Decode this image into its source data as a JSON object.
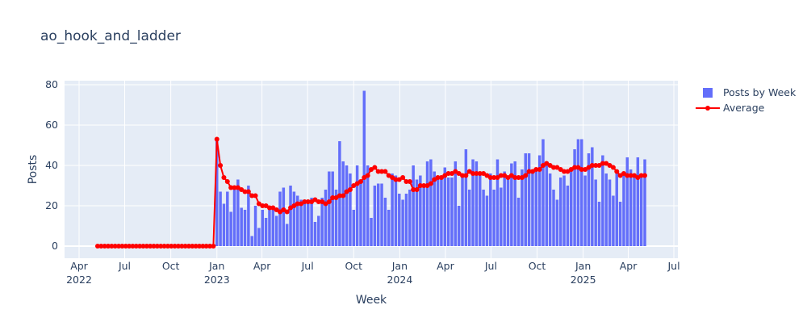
{
  "chart_data": {
    "type": "bar",
    "title": "ao_hook_and_ladder",
    "x_label": "Week",
    "y_label": "Posts",
    "x": [
      "2022-05-08",
      "2022-05-15",
      "2022-05-22",
      "2022-05-29",
      "2022-06-05",
      "2022-06-12",
      "2022-06-19",
      "2022-06-26",
      "2022-07-03",
      "2022-07-10",
      "2022-07-17",
      "2022-07-24",
      "2022-07-31",
      "2022-08-07",
      "2022-08-14",
      "2022-08-21",
      "2022-08-28",
      "2022-09-04",
      "2022-09-11",
      "2022-09-18",
      "2022-09-25",
      "2022-10-02",
      "2022-10-09",
      "2022-10-16",
      "2022-10-23",
      "2022-10-30",
      "2022-11-06",
      "2022-11-13",
      "2022-11-20",
      "2022-11-27",
      "2022-12-04",
      "2022-12-11",
      "2022-12-18",
      "2022-12-25",
      "2023-01-01",
      "2023-01-08",
      "2023-01-15",
      "2023-01-22",
      "2023-01-29",
      "2023-02-05",
      "2023-02-12",
      "2023-02-19",
      "2023-02-26",
      "2023-03-05",
      "2023-03-12",
      "2023-03-19",
      "2023-03-26",
      "2023-04-02",
      "2023-04-09",
      "2023-04-16",
      "2023-04-23",
      "2023-04-30",
      "2023-05-07",
      "2023-05-14",
      "2023-05-21",
      "2023-05-28",
      "2023-06-04",
      "2023-06-11",
      "2023-06-18",
      "2023-06-25",
      "2023-07-02",
      "2023-07-09",
      "2023-07-16",
      "2023-07-23",
      "2023-07-30",
      "2023-08-06",
      "2023-08-13",
      "2023-08-20",
      "2023-08-27",
      "2023-09-03",
      "2023-09-10",
      "2023-09-17",
      "2023-09-24",
      "2023-10-01",
      "2023-10-08",
      "2023-10-15",
      "2023-10-22",
      "2023-10-29",
      "2023-11-05",
      "2023-11-12",
      "2023-11-19",
      "2023-11-26",
      "2023-12-03",
      "2023-12-10",
      "2023-12-17",
      "2023-12-24",
      "2023-12-31",
      "2024-01-07",
      "2024-01-14",
      "2024-01-21",
      "2024-01-28",
      "2024-02-04",
      "2024-02-11",
      "2024-02-18",
      "2024-02-25",
      "2024-03-03",
      "2024-03-10",
      "2024-03-17",
      "2024-03-24",
      "2024-03-31",
      "2024-04-07",
      "2024-04-14",
      "2024-04-21",
      "2024-04-28",
      "2024-05-05",
      "2024-05-12",
      "2024-05-19",
      "2024-05-26",
      "2024-06-02",
      "2024-06-09",
      "2024-06-16",
      "2024-06-23",
      "2024-06-30",
      "2024-07-07",
      "2024-07-14",
      "2024-07-21",
      "2024-07-28",
      "2024-08-04",
      "2024-08-11",
      "2024-08-18",
      "2024-08-25",
      "2024-09-01",
      "2024-09-08",
      "2024-09-15",
      "2024-09-22",
      "2024-09-29",
      "2024-10-06",
      "2024-10-13",
      "2024-10-20",
      "2024-10-27",
      "2024-11-03",
      "2024-11-10",
      "2024-11-17",
      "2024-11-24",
      "2024-12-01",
      "2024-12-08",
      "2024-12-15",
      "2024-12-22",
      "2024-12-29",
      "2025-01-05",
      "2025-01-12",
      "2025-01-19",
      "2025-01-26",
      "2025-02-02",
      "2025-02-09",
      "2025-02-16",
      "2025-02-23",
      "2025-03-02",
      "2025-03-09",
      "2025-03-16",
      "2025-03-23",
      "2025-03-30",
      "2025-04-06",
      "2025-04-13",
      "2025-04-20",
      "2025-04-27",
      "2025-05-04"
    ],
    "series": [
      {
        "name": "Posts by Week",
        "type": "bar",
        "color": "#636efa",
        "values": [
          0,
          0,
          0,
          0,
          0,
          0,
          0,
          0,
          0,
          0,
          0,
          0,
          0,
          0,
          0,
          0,
          0,
          0,
          0,
          0,
          0,
          0,
          0,
          0,
          0,
          0,
          0,
          0,
          0,
          0,
          0,
          0,
          0,
          0,
          53,
          27,
          21,
          27,
          17,
          29,
          33,
          19,
          18,
          30,
          5,
          20,
          9,
          18,
          14,
          20,
          19,
          15,
          27,
          29,
          11,
          30,
          27,
          25,
          23,
          22,
          23,
          24,
          12,
          15,
          24,
          28,
          37,
          37,
          28,
          52,
          42,
          40,
          36,
          18,
          40,
          31,
          77,
          40,
          14,
          30,
          31,
          31,
          24,
          18,
          36,
          35,
          26,
          23,
          26,
          28,
          40,
          33,
          35,
          30,
          42,
          43,
          37,
          33,
          35,
          39,
          34,
          34,
          42,
          20,
          36,
          48,
          28,
          43,
          42,
          36,
          28,
          25,
          36,
          28,
          43,
          29,
          37,
          33,
          41,
          42,
          24,
          38,
          46,
          46,
          38,
          38,
          45,
          53,
          40,
          36,
          28,
          23,
          34,
          35,
          30,
          37,
          48,
          53,
          53,
          35,
          46,
          49,
          33,
          22,
          45,
          36,
          33,
          25,
          38,
          22,
          36,
          44,
          38,
          34,
          44,
          36,
          43
        ]
      },
      {
        "name": "Average",
        "type": "line",
        "color": "#ff0000",
        "values": [
          0,
          0,
          0,
          0,
          0,
          0,
          0,
          0,
          0,
          0,
          0,
          0,
          0,
          0,
          0,
          0,
          0,
          0,
          0,
          0,
          0,
          0,
          0,
          0,
          0,
          0,
          0,
          0,
          0,
          0,
          0,
          0,
          0,
          0,
          53,
          40,
          34,
          32,
          29,
          29,
          29,
          28,
          27,
          27,
          25,
          25,
          21,
          20,
          20,
          19,
          19,
          18,
          17,
          18,
          17,
          19,
          20,
          21,
          21,
          22,
          22,
          22,
          23,
          22,
          22,
          21,
          22,
          24,
          24,
          25,
          25,
          27,
          28,
          30,
          31,
          32,
          34,
          35,
          38,
          39,
          37,
          37,
          37,
          35,
          34,
          33,
          33,
          34,
          32,
          32,
          28,
          28,
          30,
          30,
          30,
          31,
          33,
          34,
          34,
          35,
          36,
          36,
          37,
          36,
          35,
          35,
          37,
          36,
          36,
          36,
          36,
          35,
          34,
          34,
          34,
          35,
          35,
          34,
          35,
          34,
          34,
          34,
          35,
          37,
          37,
          38,
          38,
          40,
          41,
          40,
          39,
          39,
          38,
          37,
          37,
          38,
          39,
          39,
          38,
          38,
          39,
          40,
          40,
          40,
          41,
          41,
          40,
          39,
          37,
          35,
          36,
          35,
          35,
          35,
          34,
          35,
          35
        ]
      }
    ],
    "xlim": [
      "2022-03-03",
      "2025-07-09"
    ],
    "xticks": [
      {
        "value": "2022-04-01",
        "label": "Apr 2022"
      },
      {
        "value": "2022-07-01",
        "label": "Jul"
      },
      {
        "value": "2022-10-01",
        "label": "Oct"
      },
      {
        "value": "2023-01-01",
        "label": "Jan 2023"
      },
      {
        "value": "2023-04-01",
        "label": "Apr"
      },
      {
        "value": "2023-07-01",
        "label": "Jul"
      },
      {
        "value": "2023-10-01",
        "label": "Oct"
      },
      {
        "value": "2024-01-01",
        "label": "Jan 2024"
      },
      {
        "value": "2024-04-01",
        "label": "Apr"
      },
      {
        "value": "2024-07-01",
        "label": "Jul"
      },
      {
        "value": "2024-10-01",
        "label": "Oct"
      },
      {
        "value": "2025-01-01",
        "label": "Jan 2025"
      },
      {
        "value": "2025-04-01",
        "label": "Apr"
      },
      {
        "value": "2025-07-01",
        "label": "Jul"
      }
    ],
    "ylim": [
      -6,
      82
    ],
    "yticks": [
      0,
      20,
      40,
      60,
      80
    ],
    "grid": true,
    "legend": "top-right"
  }
}
